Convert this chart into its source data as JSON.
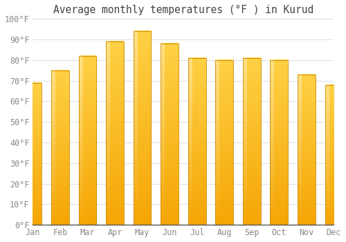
{
  "title": "Average monthly temperatures (°F ) in Kurud",
  "months": [
    "Jan",
    "Feb",
    "Mar",
    "Apr",
    "May",
    "Jun",
    "Jul",
    "Aug",
    "Sep",
    "Oct",
    "Nov",
    "Dec"
  ],
  "values": [
    69,
    75,
    82,
    89,
    94,
    88,
    81,
    80,
    81,
    80,
    73,
    68
  ],
  "bar_color_bottom": "#FFCC44",
  "bar_color_top": "#F5A800",
  "bar_highlight": "#FFE080",
  "bar_edge_color": "#CC8800",
  "background_color": "#FFFFFF",
  "grid_color": "#E0E0E0",
  "tick_label_color": "#888888",
  "title_color": "#444444",
  "ylim": [
    0,
    100
  ],
  "ytick_step": 10,
  "title_fontsize": 10.5,
  "tick_fontsize": 8.5
}
